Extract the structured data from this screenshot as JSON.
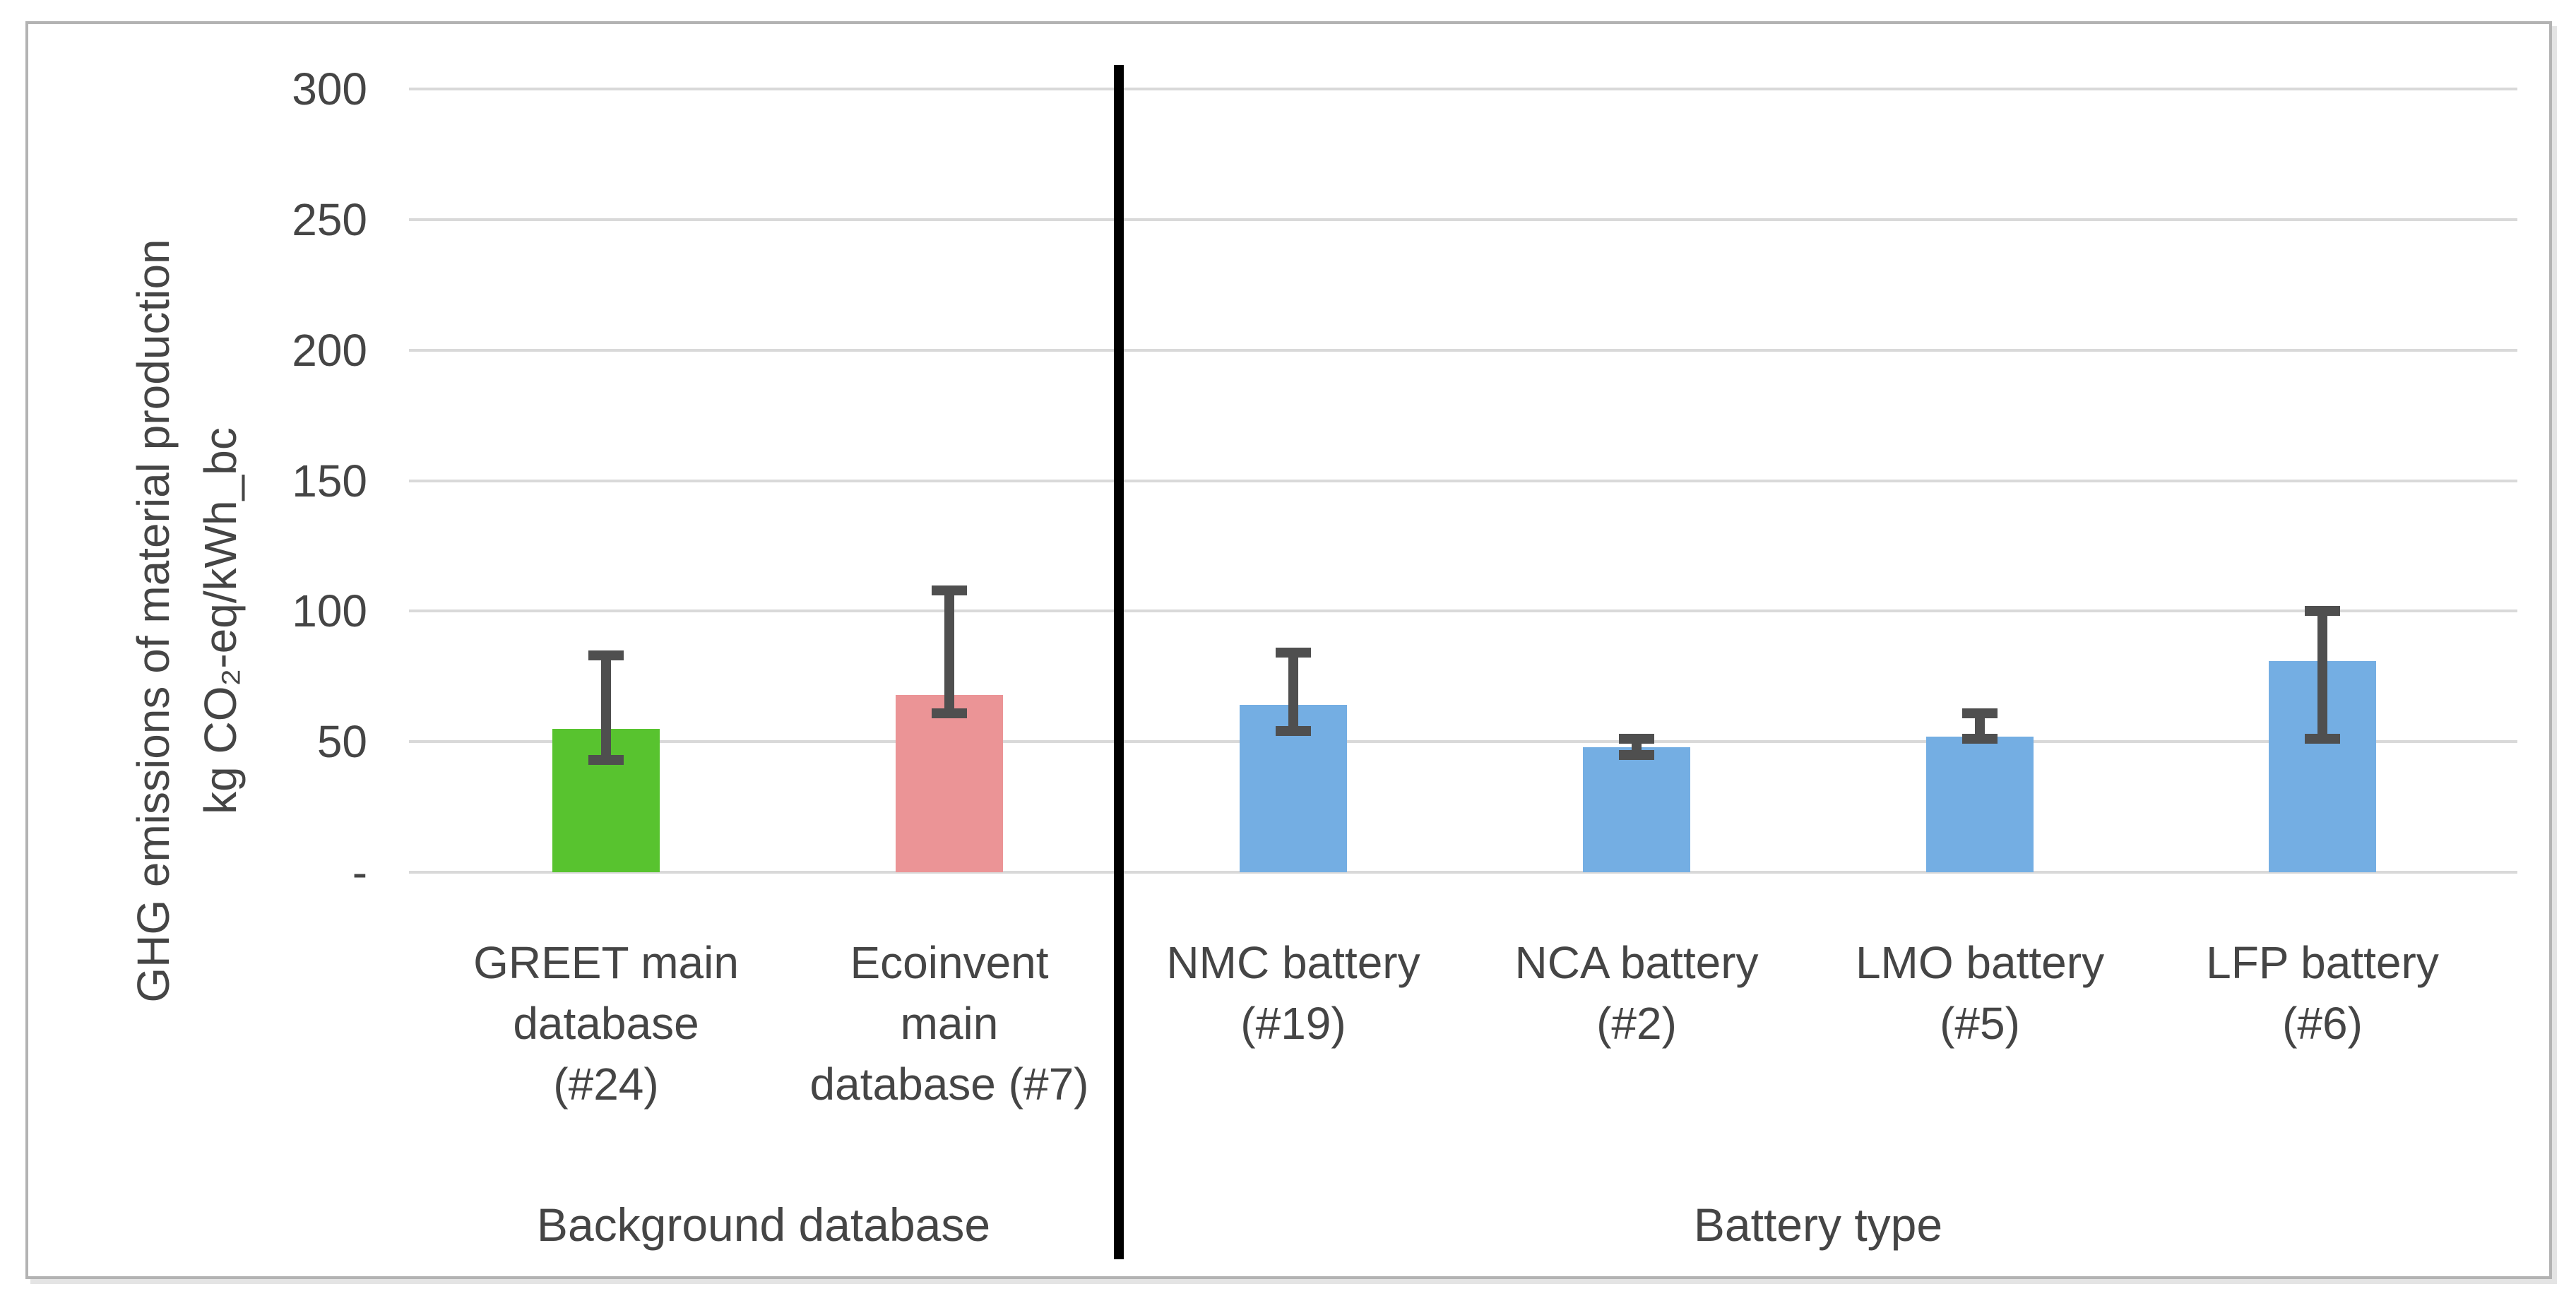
{
  "chart_data": {
    "type": "bar",
    "title": "",
    "ylabel_lines": [
      "GHG emissions of material production",
      "kg CO₂-eq/kWh_bc"
    ],
    "ylim": [
      0,
      300
    ],
    "grid": true,
    "legend": "none",
    "yticks": [
      {
        "value": 300,
        "label": "300"
      },
      {
        "value": 250,
        "label": "250"
      },
      {
        "value": 200,
        "label": "200"
      },
      {
        "value": 150,
        "label": "150"
      },
      {
        "value": 100,
        "label": "100"
      },
      {
        "value": 50,
        "label": "50"
      },
      {
        "value": 0,
        "label": "-"
      }
    ],
    "colors": {
      "gridline": "#d9d9d9",
      "error_bar": "#4f4f4f",
      "divider": "#000000",
      "text": "#454545",
      "greet_bar": "#58c32f",
      "ecoinvent_bar": "#eb9496",
      "battery_bar": "#74aee3"
    },
    "groups": [
      {
        "label": "Background database",
        "categories": [
          {
            "label": "GREET main\ndatabase\n(#24)",
            "value": 55,
            "error_low": 43,
            "error_high": 83,
            "color": "#58c32f"
          },
          {
            "label": "Ecoinvent\nmain\ndatabase (#7)",
            "value": 68,
            "error_low": 61,
            "error_high": 108,
            "color": "#eb9496"
          }
        ]
      },
      {
        "label": "Battery type",
        "categories": [
          {
            "label": "NMC battery\n(#19)",
            "value": 64,
            "error_low": 54,
            "error_high": 84,
            "color": "#74aee3"
          },
          {
            "label": "NCA battery\n(#2)",
            "value": 48,
            "error_low": 45,
            "error_high": 51,
            "color": "#74aee3"
          },
          {
            "label": "LMO battery\n(#5)",
            "value": 52,
            "error_low": 51,
            "error_high": 61,
            "color": "#74aee3"
          },
          {
            "label": "LFP battery\n(#6)",
            "value": 81,
            "error_low": 51,
            "error_high": 100,
            "color": "#74aee3"
          }
        ]
      }
    ]
  }
}
